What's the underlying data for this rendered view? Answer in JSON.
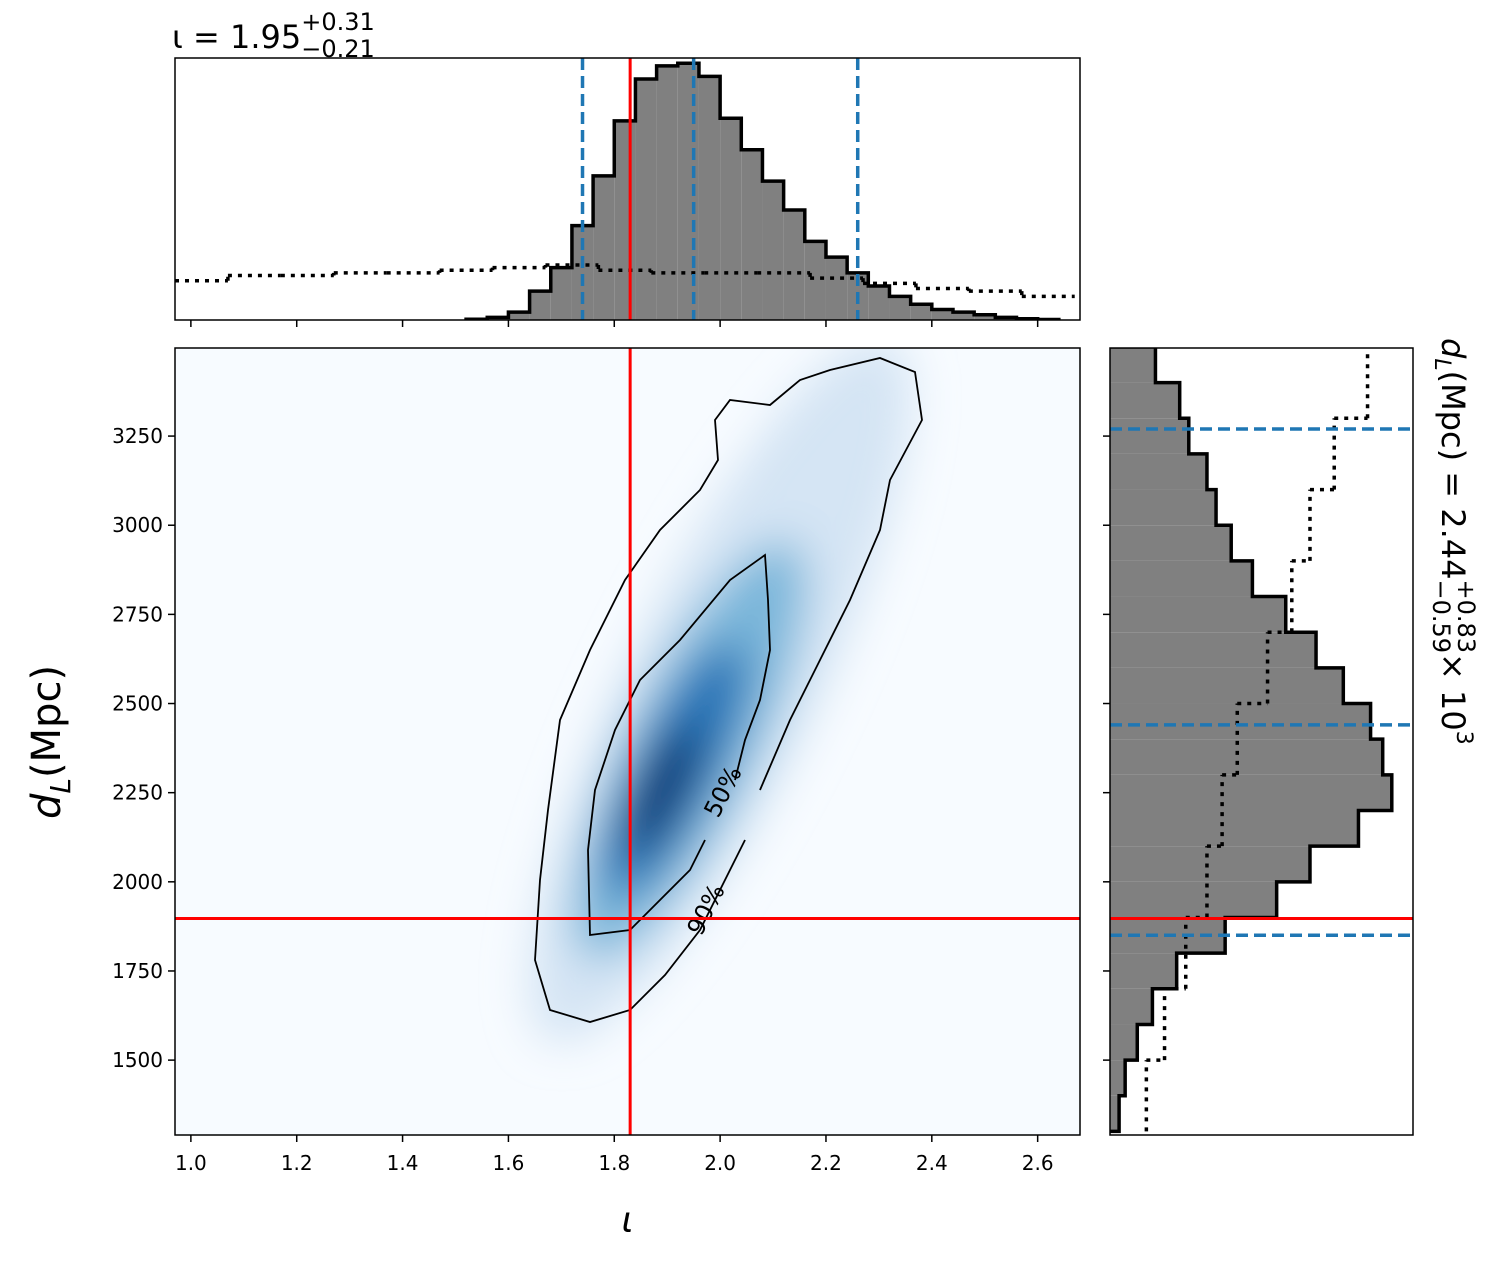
{
  "chart_data": [
    {
      "type": "histogram",
      "title": {
        "text": "ι = 1.95",
        "upper": "+0.31",
        "lower": "−0.21"
      },
      "bins": [
        1.52,
        1.56,
        1.6,
        1.64,
        1.68,
        1.72,
        1.76,
        1.8,
        1.84,
        1.88,
        1.92,
        1.96,
        2.0,
        2.04,
        2.08,
        2.12,
        2.16,
        2.2,
        2.24,
        2.28,
        2.32,
        2.36,
        2.4,
        2.44,
        2.48,
        2.52,
        2.56,
        2.6,
        2.64
      ],
      "values": [
        0.003,
        0.01,
        0.03,
        0.11,
        0.2,
        0.36,
        0.55,
        0.76,
        0.92,
        0.97,
        0.98,
        0.93,
        0.77,
        0.65,
        0.53,
        0.42,
        0.3,
        0.24,
        0.18,
        0.13,
        0.09,
        0.06,
        0.04,
        0.03,
        0.02,
        0.01,
        0.005,
        0.002
      ],
      "color": "#808080",
      "prior": {
        "bins": [
          0.97,
          1.07,
          1.17,
          1.27,
          1.37,
          1.47,
          1.57,
          1.67,
          1.77,
          1.87,
          1.97,
          2.07,
          2.17,
          2.27,
          2.37,
          2.47,
          2.57,
          2.67
        ],
        "values": [
          0.15,
          0.17,
          0.17,
          0.18,
          0.18,
          0.19,
          0.2,
          0.21,
          0.19,
          0.18,
          0.18,
          0.18,
          0.16,
          0.14,
          0.12,
          0.11,
          0.09
        ]
      },
      "truth": 1.83,
      "truth_color": "#ff0000",
      "intervals": [
        1.74,
        1.95,
        2.26
      ],
      "interval_color": "#1f77b4",
      "xlim": [
        0.97,
        2.68
      ],
      "xticks": [
        {
          "value": 1.0,
          "label": "1.0"
        },
        1.2,
        1.4,
        1.6,
        1.8,
        {
          "value": 2.0,
          "label": "2.0"
        },
        2.2,
        2.4,
        2.6
      ],
      "ylim": [
        0,
        1
      ]
    },
    {
      "type": "density2d",
      "xlabel": "ι",
      "ylabel": {
        "text": "d",
        "sub": "L",
        "text2": " (Mpc)"
      },
      "contour_labels": [
        "50%",
        "90%"
      ],
      "truth": [
        1.83,
        1897
      ],
      "truth_color": "#ff0000",
      "xlim": [
        0.97,
        2.68
      ],
      "xticks": [
        {
          "value": 1.0,
          "label": "1.0"
        },
        1.2,
        1.4,
        1.6,
        1.8,
        {
          "value": 2.0,
          "label": "2.0"
        },
        2.2,
        2.4,
        2.6
      ],
      "ylim": [
        1290,
        3497
      ],
      "yticks": [
        1500,
        1750,
        2000,
        2250,
        2500,
        2750,
        3000,
        3250
      ]
    },
    {
      "type": "histogram",
      "orientation": "horizontal",
      "label": {
        "text": "d",
        "sub": "L",
        "text2": " (Mpc) = 2.44",
        "upper": "+0.83",
        "lower": "−0.59",
        "text3": " × 10",
        "power": "3"
      },
      "bins": [
        1300,
        1400,
        1500,
        1600,
        1700,
        1800,
        1900,
        2000,
        2100,
        2200,
        2300,
        2400,
        2500,
        2600,
        2700,
        2800,
        2900,
        3000,
        3100,
        3200,
        3300,
        3400,
        3500
      ],
      "values": [
        0.03,
        0.05,
        0.09,
        0.14,
        0.22,
        0.38,
        0.55,
        0.66,
        0.82,
        0.93,
        0.9,
        0.86,
        0.77,
        0.68,
        0.58,
        0.47,
        0.4,
        0.35,
        0.32,
        0.26,
        0.23,
        0.15
      ],
      "color": "#808080",
      "prior": {
        "bins": [
          1300,
          1500,
          1700,
          1900,
          2100,
          2300,
          2500,
          2700,
          2900,
          3100,
          3300,
          3500
        ],
        "values": [
          0.12,
          0.18,
          0.25,
          0.32,
          0.37,
          0.42,
          0.52,
          0.6,
          0.66,
          0.74,
          0.85
        ]
      },
      "truth": 1897,
      "truth_color": "#ff0000",
      "intervals": [
        1850,
        2440,
        3270
      ],
      "interval_color": "#1f77b4",
      "ylim": [
        1290,
        3497
      ],
      "yticks": [
        1500,
        1750,
        2000,
        2250,
        2500,
        2750,
        3000,
        3250
      ],
      "xlim": [
        0,
        1
      ]
    }
  ]
}
